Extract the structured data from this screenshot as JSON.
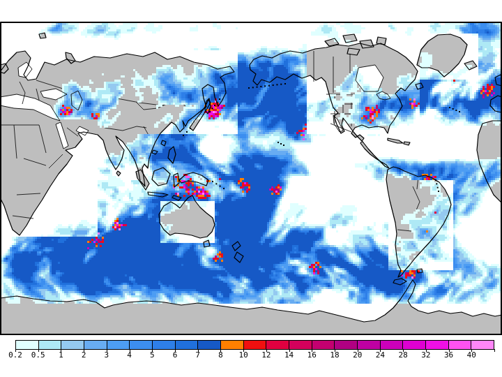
{
  "legend": {
    "levels": [
      "0.2",
      "0.5",
      "1",
      "2",
      "3",
      "4",
      "5",
      "6",
      "7",
      "8",
      "10",
      "12",
      "14",
      "16",
      "18",
      "20",
      "24",
      "28",
      "32",
      "36",
      "40"
    ],
    "colors": [
      "#E0FFFF",
      "#AEE9F5",
      "#94C9F0",
      "#68ACF2",
      "#4D9DF3",
      "#3C8EEF",
      "#2E7FE8",
      "#2070DC",
      "#1659C6",
      "#FF8000",
      "#F01010",
      "#E00040",
      "#D4005C",
      "#C40070",
      "#B00082",
      "#BE00A2",
      "#CC00BA",
      "#DE00D2",
      "#F010E6",
      "#FF52F0",
      "#FF86F8"
    ]
  },
  "map": {
    "land_color": "#BEBEBE",
    "ocean_color": "#FFFFFF",
    "coast_color": "#000000",
    "frame_color": "#000000"
  },
  "chart_data": {
    "type": "heatmap",
    "projection": "global-pacific-centered",
    "legend_position": "bottom",
    "legend_levels": [
      0.2,
      0.5,
      1,
      2,
      3,
      4,
      5,
      6,
      7,
      8,
      10,
      12,
      14,
      16,
      18,
      20,
      24,
      28,
      32,
      36,
      40
    ],
    "legend_colors": [
      "#E0FFFF",
      "#AEE9F5",
      "#94C9F0",
      "#68ACF2",
      "#4D9DF3",
      "#3C8EEF",
      "#2E7FE8",
      "#2070DC",
      "#1659C6",
      "#FF8000",
      "#F01010",
      "#E00040",
      "#D4005C",
      "#C40070",
      "#B00082",
      "#BE00A2",
      "#CC00BA",
      "#DE00D2",
      "#F010E6",
      "#FF52F0",
      "#FF86F8"
    ]
  }
}
